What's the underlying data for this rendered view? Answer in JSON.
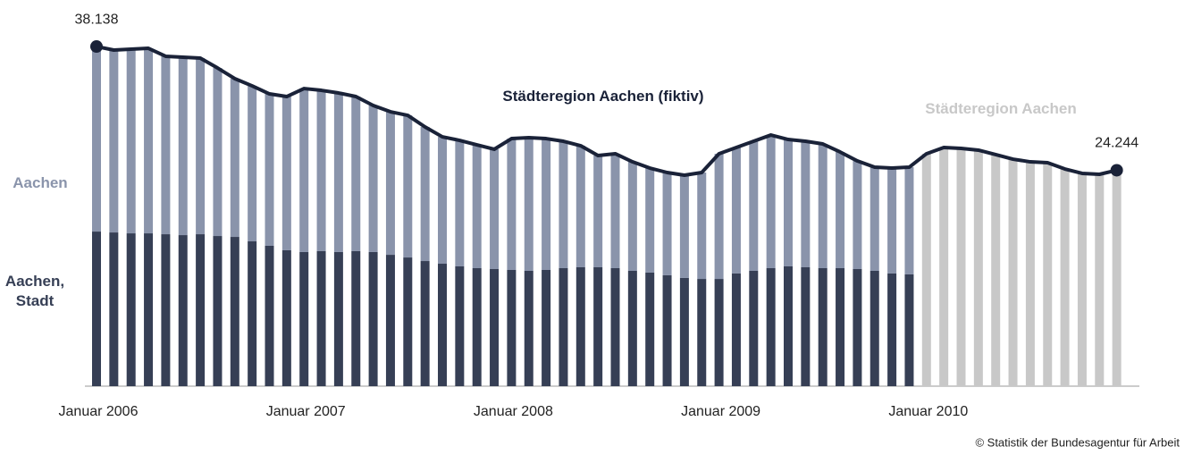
{
  "chart_data": {
    "type": "bar",
    "stacked": true,
    "categories": [
      "Januar 2006",
      null,
      null,
      null,
      null,
      null,
      null,
      null,
      null,
      null,
      null,
      null,
      "Januar 2007",
      null,
      null,
      null,
      null,
      null,
      null,
      null,
      null,
      null,
      null,
      null,
      "Januar 2008",
      null,
      null,
      null,
      null,
      null,
      null,
      null,
      null,
      null,
      null,
      null,
      "Januar 2009",
      null,
      null,
      null,
      null,
      null,
      null,
      null,
      null,
      null,
      null,
      null,
      "Januar 2010",
      null,
      null,
      null,
      null,
      null,
      null,
      null,
      null,
      null,
      null,
      null
    ],
    "ylim": [
      0,
      40000
    ],
    "series": [
      {
        "name": "Aachen, Stadt",
        "color": "#363f55",
        "values": [
          17360,
          17260,
          17160,
          17160,
          17060,
          16960,
          17060,
          16860,
          16760,
          16260,
          15760,
          15260,
          15060,
          15160,
          15060,
          15160,
          15060,
          14750,
          14450,
          14050,
          13750,
          13450,
          13250,
          13150,
          13050,
          12950,
          13050,
          13250,
          13350,
          13350,
          13250,
          12950,
          12750,
          12450,
          12150,
          12040,
          12040,
          12650,
          12950,
          13250,
          13450,
          13350,
          13250,
          13250,
          13150,
          12950,
          12650,
          12550,
          null,
          null,
          null,
          null,
          null,
          null,
          null,
          null,
          null,
          null,
          null,
          null
        ]
      },
      {
        "name": "Aachen",
        "color": "#8a94ab",
        "values": [
          20778,
          20480,
          20680,
          20780,
          19980,
          19980,
          19780,
          18870,
          17770,
          17460,
          17060,
          17260,
          18360,
          18060,
          17860,
          17360,
          16460,
          16060,
          15960,
          15060,
          14250,
          14150,
          13850,
          13450,
          14750,
          14950,
          14750,
          14250,
          13650,
          12550,
          12850,
          12240,
          11740,
          11540,
          11540,
          11950,
          14060,
          14150,
          14550,
          14950,
          14250,
          14150,
          13950,
          13050,
          12140,
          11640,
          11840,
          12040,
          null,
          null,
          null,
          null,
          null,
          null,
          null,
          null,
          null,
          null,
          null,
          null
        ]
      },
      {
        "name": "Städteregion Aachen",
        "color": "#c8c8c8",
        "values": [
          null,
          null,
          null,
          null,
          null,
          null,
          null,
          null,
          null,
          null,
          null,
          null,
          null,
          null,
          null,
          null,
          null,
          null,
          null,
          null,
          null,
          null,
          null,
          null,
          null,
          null,
          null,
          null,
          null,
          null,
          null,
          null,
          null,
          null,
          null,
          null,
          null,
          null,
          null,
          null,
          null,
          null,
          null,
          null,
          null,
          null,
          null,
          null,
          26100,
          26800,
          26700,
          26500,
          26000,
          25490,
          25190,
          25090,
          24390,
          23890,
          23790,
          24244
        ]
      },
      {
        "name": "Städteregion Aachen (fiktiv)",
        "type": "line",
        "color": "#1a2238",
        "values": [
          38138,
          37740,
          37840,
          37940,
          37040,
          36940,
          36840,
          35730,
          34530,
          33720,
          32820,
          32520,
          33420,
          33220,
          32920,
          32520,
          31520,
          30810,
          30410,
          29110,
          28000,
          27600,
          27100,
          26600,
          27800,
          27900,
          27800,
          27500,
          27000,
          25900,
          26100,
          25190,
          24490,
          23990,
          23690,
          23990,
          26100,
          26800,
          27500,
          28200,
          27700,
          27500,
          27200,
          26300,
          25290,
          24590,
          24490,
          24590,
          26100,
          26800,
          26700,
          26500,
          26000,
          25490,
          25190,
          25090,
          24390,
          23890,
          23790,
          24244
        ],
        "value_labels": [
          "38.138",
          null,
          null,
          null,
          null,
          null,
          null,
          null,
          null,
          null,
          null,
          null,
          null,
          null,
          null,
          null,
          null,
          null,
          null,
          null,
          null,
          null,
          null,
          null,
          null,
          null,
          null,
          null,
          null,
          null,
          null,
          null,
          null,
          null,
          null,
          null,
          null,
          null,
          null,
          null,
          null,
          null,
          null,
          null,
          null,
          null,
          null,
          null,
          null,
          null,
          null,
          null,
          null,
          null,
          null,
          null,
          null,
          null,
          null,
          "24.244"
        ]
      }
    ],
    "source": "© Statistik der Bundesagentur für Arbeit"
  }
}
